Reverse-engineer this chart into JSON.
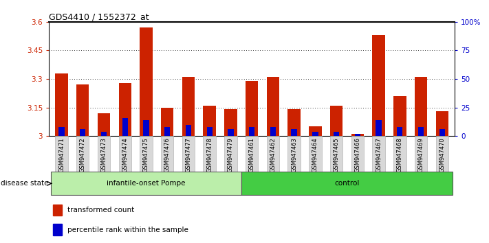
{
  "title": "GDS4410 / 1552372_at",
  "samples": [
    "GSM947471",
    "GSM947472",
    "GSM947473",
    "GSM947474",
    "GSM947475",
    "GSM947476",
    "GSM947477",
    "GSM947478",
    "GSM947479",
    "GSM947461",
    "GSM947462",
    "GSM947463",
    "GSM947464",
    "GSM947465",
    "GSM947466",
    "GSM947467",
    "GSM947468",
    "GSM947469",
    "GSM947470"
  ],
  "red_values": [
    3.33,
    3.27,
    3.12,
    3.28,
    3.57,
    3.15,
    3.31,
    3.16,
    3.14,
    3.29,
    3.31,
    3.14,
    3.05,
    3.16,
    3.01,
    3.53,
    3.21,
    3.31,
    3.13
  ],
  "blue_percentiles": [
    8,
    6,
    4,
    16,
    14,
    8,
    10,
    8,
    6,
    8,
    8,
    6,
    4,
    4,
    2,
    14,
    8,
    8,
    6
  ],
  "ymin": 3.0,
  "ymax": 3.6,
  "yticks": [
    3.0,
    3.15,
    3.3,
    3.45,
    3.6
  ],
  "ytick_labels": [
    "3",
    "3.15",
    "3.3",
    "3.45",
    "3.6"
  ],
  "right_yticks": [
    0,
    25,
    50,
    75,
    100
  ],
  "right_ytick_labels": [
    "0",
    "25",
    "50",
    "75",
    "100%"
  ],
  "group1_label": "infantile-onset Pompe",
  "group2_label": "control",
  "group1_count": 9,
  "group2_count": 10,
  "disease_state_label": "disease state",
  "legend1": "transformed count",
  "legend2": "percentile rank within the sample",
  "bar_color": "#cc2200",
  "blue_color": "#0000cc",
  "group1_bg": "#bbeeaa",
  "group2_bg": "#44cc44",
  "tick_color_left": "#cc2200",
  "tick_color_right": "#0000cc",
  "sample_box_bg": "#d8d8d8",
  "sample_box_edge": "#aaaaaa"
}
